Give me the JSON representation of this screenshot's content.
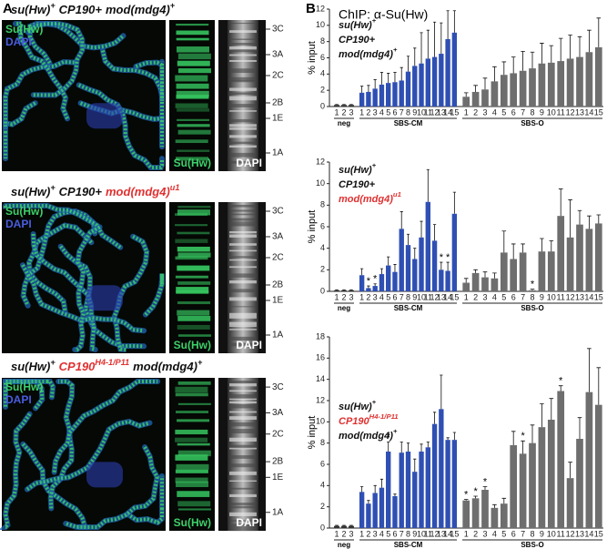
{
  "panel_a": {
    "label": "A",
    "rows": [
      {
        "genotype": [
          {
            "text": "su(Hw)",
            "sup": "+"
          },
          {
            "text": "CP190+"
          },
          {
            "text": "mod(mdg4)",
            "sup": "+"
          }
        ],
        "channels": [
          "Su(Hw)",
          "DAPI"
        ],
        "strip_labels": [
          "Su(Hw)",
          "DAPI"
        ],
        "bands": [
          "3C",
          "3A",
          "2C",
          "2B",
          "1E",
          "1A"
        ]
      },
      {
        "genotype": [
          {
            "text": "su(Hw)",
            "sup": "+"
          },
          {
            "text": "CP190+"
          },
          {
            "text": "mod(mdg4)",
            "sup": "u1",
            "color": "#e03131"
          }
        ],
        "channels": [
          "Su(Hw)",
          "DAPI"
        ],
        "strip_labels": [
          "Su(Hw)",
          "DAPI"
        ],
        "bands": [
          "3C",
          "3A",
          "2C",
          "2B",
          "1E",
          "1A"
        ]
      },
      {
        "genotype": [
          {
            "text": "su(Hw)",
            "sup": "+"
          },
          {
            "text": "CP190",
            "sup": "H4-1/P11",
            "color": "#e03131"
          },
          {
            "text": "mod(mdg4)",
            "sup": "+"
          }
        ],
        "channels": [
          "Su(Hw)",
          "DAPI"
        ],
        "strip_labels": [
          "Su(Hw)",
          "DAPI"
        ],
        "bands": [
          "3C",
          "3A",
          "2C",
          "2B",
          "1E",
          "1A"
        ]
      }
    ]
  },
  "panel_b": {
    "label": "B",
    "title": "ChIP: α-Su(Hw)"
  },
  "chart_data": [
    {
      "type": "bar",
      "ylabel": "% input",
      "ylim": [
        0,
        12
      ],
      "yticks": [
        0,
        2,
        4,
        6,
        8,
        10,
        12
      ],
      "genotype": [
        [
          {
            "text": "su(Hw)",
            "sup": "+"
          }
        ],
        [
          {
            "text": "CP190+"
          }
        ],
        [
          {
            "text": "mod(mdg4)",
            "sup": "+"
          }
        ]
      ],
      "series": [
        {
          "name": "neg",
          "color": "#333333",
          "categories": [
            "1",
            "2",
            "3"
          ],
          "values": [
            0.2,
            0.2,
            0.2
          ],
          "errors": [
            0.05,
            0.05,
            0.05
          ],
          "significance": [
            null,
            null,
            null
          ]
        },
        {
          "name": "SBS-CM",
          "color": "#2f4fb3",
          "categories": [
            "1",
            "2",
            "3",
            "4",
            "5",
            "6",
            "7",
            "8",
            "9",
            "10",
            "11",
            "12",
            "13",
            "14",
            "15"
          ],
          "values": [
            1.7,
            1.8,
            2.2,
            2.7,
            2.9,
            3.0,
            3.2,
            4.3,
            5.0,
            5.3,
            5.9,
            6.1,
            6.5,
            8.3,
            9.1
          ],
          "errors": [
            0.8,
            0.8,
            1.1,
            1.5,
            1.2,
            1.2,
            1.6,
            1.9,
            2.2,
            3.8,
            3.5,
            4.3,
            3.8,
            3.5,
            2.7
          ],
          "significance": [
            null,
            null,
            null,
            null,
            null,
            null,
            null,
            null,
            null,
            null,
            null,
            null,
            null,
            null,
            null
          ]
        },
        {
          "name": "SBS-O",
          "color": "#6e6e6e",
          "categories": [
            "1",
            "2",
            "3",
            "4",
            "5",
            "6",
            "7",
            "8",
            "9",
            "10",
            "11",
            "12",
            "13",
            "14",
            "15"
          ],
          "values": [
            1.2,
            1.8,
            2.1,
            3.1,
            3.9,
            4.1,
            4.4,
            4.7,
            5.3,
            5.4,
            5.6,
            5.9,
            6.1,
            6.7,
            7.3
          ],
          "errors": [
            0.5,
            0.8,
            1.4,
            1.8,
            1.6,
            2.0,
            2.4,
            2.0,
            2.5,
            2.1,
            2.8,
            2.9,
            2.5,
            2.7,
            3.6
          ],
          "significance": [
            null,
            null,
            null,
            null,
            null,
            null,
            null,
            null,
            null,
            null,
            null,
            null,
            null,
            null,
            null
          ]
        }
      ]
    },
    {
      "type": "bar",
      "ylabel": "% input",
      "ylim": [
        0,
        12
      ],
      "yticks": [
        0,
        2,
        4,
        6,
        8,
        10,
        12
      ],
      "genotype": [
        [
          {
            "text": "su(Hw)",
            "sup": "+"
          }
        ],
        [
          {
            "text": "CP190+"
          }
        ],
        [
          {
            "text": "mod(mdg4)",
            "sup": "u1",
            "color": "#e03131"
          }
        ]
      ],
      "series": [
        {
          "name": "neg",
          "color": "#333333",
          "categories": [
            "1",
            "2",
            "3"
          ],
          "values": [
            0.1,
            0.1,
            0.1
          ],
          "errors": [
            0.05,
            0.05,
            0.05
          ],
          "significance": [
            null,
            null,
            null
          ]
        },
        {
          "name": "SBS-CM",
          "color": "#2f4fb3",
          "categories": [
            "1",
            "2",
            "3",
            "4",
            "5",
            "6",
            "7",
            "8",
            "9",
            "10",
            "11",
            "12",
            "13",
            "14",
            "15"
          ],
          "values": [
            1.5,
            0.3,
            0.5,
            1.6,
            2.4,
            1.8,
            5.8,
            4.3,
            3.0,
            5.0,
            8.3,
            4.7,
            2.0,
            1.9,
            7.2
          ],
          "errors": [
            0.6,
            0.2,
            0.2,
            0.5,
            0.8,
            0.7,
            1.6,
            1.0,
            1.0,
            1.5,
            3.0,
            1.5,
            0.7,
            0.8,
            2.0
          ],
          "significance": [
            null,
            "*",
            "*",
            null,
            null,
            null,
            null,
            null,
            null,
            null,
            null,
            null,
            "*",
            "*",
            null
          ]
        },
        {
          "name": "SBS-O",
          "color": "#6e6e6e",
          "categories": [
            "1",
            "2",
            "3",
            "4",
            "5",
            "6",
            "7",
            "8",
            "9",
            "10",
            "11",
            "12",
            "13",
            "14",
            "15"
          ],
          "values": [
            0.8,
            1.7,
            1.3,
            1.2,
            3.6,
            3.0,
            3.6,
            0.1,
            3.7,
            3.7,
            7.0,
            5.0,
            6.2,
            5.8,
            6.3
          ],
          "errors": [
            0.4,
            0.3,
            0.5,
            0.5,
            2.0,
            1.4,
            0.8,
            0.1,
            1.2,
            1.0,
            2.5,
            3.5,
            1.3,
            1.2,
            0.8
          ],
          "significance": [
            null,
            null,
            null,
            null,
            null,
            null,
            null,
            "*",
            null,
            null,
            null,
            null,
            null,
            null,
            null
          ]
        }
      ]
    },
    {
      "type": "bar",
      "ylabel": "% input",
      "ylim": [
        0,
        18
      ],
      "yticks": [
        0,
        2,
        4,
        6,
        8,
        10,
        12,
        14,
        16,
        18
      ],
      "genotype": [
        [
          {
            "text": "su(Hw)",
            "sup": "+"
          }
        ],
        [
          {
            "text": "CP190",
            "sup": "H4-1/P11",
            "color": "#e03131"
          }
        ],
        [
          {
            "text": "mod(mdg4)",
            "sup": "+"
          }
        ]
      ],
      "series": [
        {
          "name": "neg",
          "color": "#333333",
          "categories": [
            "1",
            "2",
            "3"
          ],
          "values": [
            0.2,
            0.2,
            0.2
          ],
          "errors": [
            0.05,
            0.05,
            0.05
          ],
          "significance": [
            null,
            null,
            null
          ]
        },
        {
          "name": "SBS-CM",
          "color": "#2f4fb3",
          "categories": [
            "1",
            "2",
            "3",
            "4",
            "5",
            "6",
            "7",
            "8",
            "9",
            "10",
            "11",
            "12",
            "13",
            "14",
            "15"
          ],
          "values": [
            3.4,
            2.3,
            3.3,
            3.8,
            7.2,
            3.0,
            7.1,
            7.2,
            5.3,
            7.2,
            7.6,
            9.8,
            11.2,
            8.3,
            8.3
          ],
          "errors": [
            0.5,
            0.3,
            0.7,
            0.8,
            0.9,
            0.2,
            1.0,
            0.8,
            1.2,
            0.7,
            0.5,
            1.1,
            3.2,
            0.2,
            0.7
          ],
          "significance": [
            null,
            null,
            null,
            null,
            "*",
            null,
            null,
            null,
            null,
            null,
            null,
            null,
            null,
            null,
            null
          ]
        },
        {
          "name": "SBS-O",
          "color": "#6e6e6e",
          "categories": [
            "1",
            "2",
            "3",
            "4",
            "5",
            "6",
            "7",
            "8",
            "9",
            "10",
            "11",
            "12",
            "13",
            "14",
            "15"
          ],
          "values": [
            2.6,
            2.8,
            3.6,
            1.9,
            2.3,
            7.8,
            7.0,
            8.0,
            9.5,
            10.2,
            12.9,
            4.7,
            8.4,
            12.8,
            11.6
          ],
          "errors": [
            0.1,
            0.2,
            0.3,
            0.3,
            0.5,
            1.3,
            1.2,
            1.7,
            2.2,
            2.0,
            0.5,
            1.5,
            2.0,
            4.1,
            3.5
          ],
          "significance": [
            "*",
            "*",
            "*",
            null,
            null,
            null,
            "*",
            null,
            null,
            null,
            "*",
            null,
            null,
            null,
            null
          ]
        }
      ]
    }
  ]
}
